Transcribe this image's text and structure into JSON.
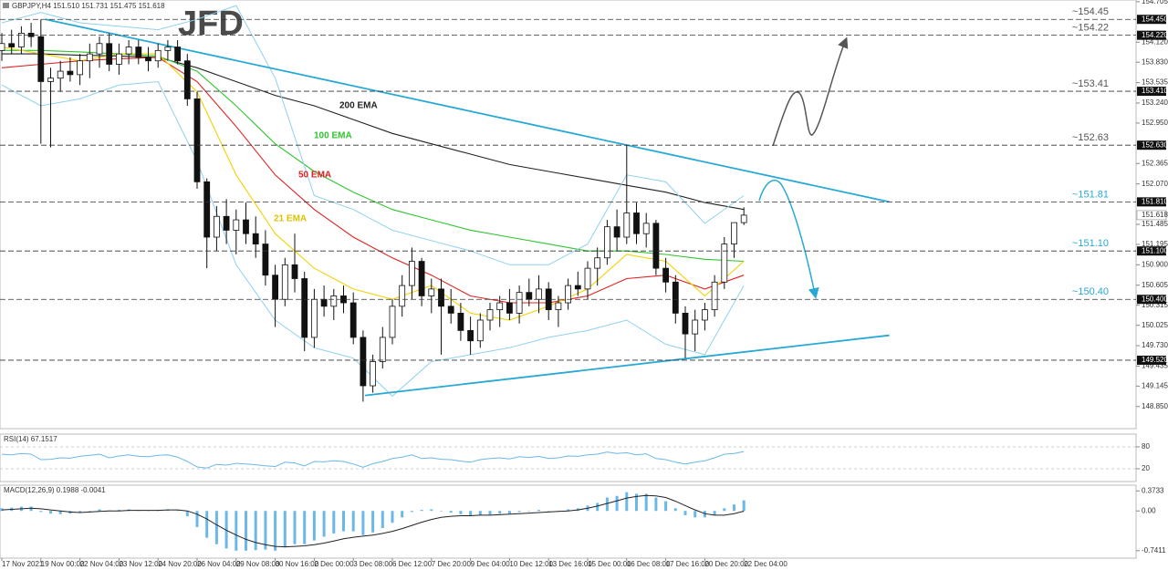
{
  "chart_data": [
    {
      "type": "candlestick",
      "header": "GBPJPY,H4  151.510 151.731 151.475 151.618",
      "logo": "JFD",
      "categories": [
        "17 Nov 2021",
        null,
        null,
        null,
        "19 Nov 00:00",
        null,
        null,
        null,
        "22 Nov 04:00",
        null,
        null,
        null,
        "23 Nov 12:00",
        null,
        null,
        null,
        "24 Nov 20:00",
        null,
        null,
        null,
        "26 Nov 04:00",
        null,
        null,
        null,
        "29 Nov 08:00",
        null,
        null,
        null,
        "30 Nov 16:00",
        null,
        null,
        null,
        "2 Dec 00:00",
        null,
        null,
        null,
        "3 Dec 08:00",
        null,
        null,
        null,
        "6 Dec 12:00",
        null,
        null,
        null,
        "7 Dec 20:00",
        null,
        null,
        null,
        "9 Dec 04:00",
        null,
        null,
        null,
        "10 Dec 12:00",
        null,
        null,
        null,
        "13 Dec 16:00",
        null,
        null,
        null,
        "15 Dec 00:00",
        null,
        null,
        null,
        "16 Dec 08:00",
        null,
        null,
        null,
        "17 Dec 16:00",
        null,
        null,
        null,
        "20 Dec 20:00",
        null,
        null,
        null,
        "22 Dec 04:00"
      ],
      "open": [
        154.0,
        154.1,
        154.05,
        154.25,
        154.2,
        153.55,
        153.6,
        153.7,
        153.65,
        153.85,
        153.95,
        154.1,
        153.8,
        153.95,
        154.05,
        153.9,
        153.85,
        154.0,
        154.05,
        153.85,
        153.3,
        152.1,
        151.3,
        151.6,
        151.4,
        151.55,
        151.35,
        151.2,
        150.75,
        150.4,
        150.9,
        150.7,
        149.85,
        150.4,
        150.3,
        150.45,
        150.35,
        149.85,
        149.15,
        149.5,
        149.85,
        150.3,
        150.6,
        150.95,
        150.45,
        150.55,
        150.3,
        150.2,
        149.95,
        149.8,
        150.1,
        150.25,
        150.35,
        150.2,
        150.5,
        150.4,
        150.55,
        150.25,
        150.35,
        150.6,
        150.55,
        150.85,
        151.0,
        151.45,
        151.3,
        151.65,
        151.35,
        151.5,
        150.85,
        150.65,
        150.2,
        149.9,
        150.1,
        150.25,
        150.65,
        151.2,
        151.51
      ],
      "high": [
        154.25,
        154.3,
        154.35,
        154.4,
        154.45,
        153.75,
        153.85,
        153.9,
        153.95,
        154.1,
        154.2,
        154.25,
        154.1,
        154.15,
        154.15,
        154.05,
        154.1,
        154.15,
        154.15,
        153.95,
        153.4,
        152.15,
        151.75,
        151.85,
        151.7,
        151.8,
        151.6,
        151.4,
        150.9,
        151.0,
        151.35,
        150.8,
        150.55,
        150.6,
        150.55,
        150.6,
        150.5,
        149.95,
        149.6,
        150.0,
        150.4,
        150.75,
        151.15,
        151.0,
        150.7,
        150.7,
        150.55,
        150.35,
        150.15,
        150.2,
        150.35,
        150.45,
        150.55,
        150.6,
        150.7,
        150.75,
        150.65,
        150.45,
        150.7,
        150.8,
        150.95,
        151.15,
        151.55,
        151.7,
        152.63,
        151.8,
        151.65,
        151.55,
        151.0,
        150.75,
        150.3,
        150.25,
        150.35,
        150.75,
        151.3,
        151.45,
        151.731
      ],
      "low": [
        153.85,
        153.95,
        153.95,
        154.05,
        152.65,
        152.6,
        153.4,
        153.55,
        153.5,
        153.6,
        153.75,
        153.7,
        153.65,
        153.8,
        153.8,
        153.7,
        153.75,
        153.85,
        153.8,
        153.2,
        152.0,
        150.85,
        151.1,
        151.2,
        151.05,
        151.2,
        151.0,
        150.6,
        150.0,
        150.3,
        150.5,
        149.65,
        149.7,
        150.15,
        150.1,
        150.2,
        149.75,
        148.92,
        149.05,
        149.4,
        149.75,
        150.15,
        150.4,
        150.3,
        150.2,
        149.6,
        150.05,
        149.8,
        149.6,
        149.7,
        149.95,
        150.0,
        150.1,
        150.05,
        150.3,
        150.2,
        150.1,
        150.0,
        150.25,
        150.45,
        150.4,
        150.6,
        150.9,
        151.1,
        151.2,
        151.2,
        151.15,
        150.75,
        150.5,
        150.05,
        149.55,
        149.65,
        149.95,
        150.15,
        150.55,
        151.0,
        151.475
      ],
      "close": [
        154.1,
        154.05,
        154.25,
        154.2,
        153.55,
        153.6,
        153.7,
        153.65,
        153.85,
        153.95,
        154.1,
        153.8,
        153.95,
        154.05,
        153.9,
        153.85,
        154.0,
        154.05,
        153.85,
        153.3,
        152.1,
        151.3,
        151.6,
        151.4,
        151.55,
        151.35,
        151.2,
        150.75,
        150.4,
        150.9,
        150.7,
        149.85,
        150.4,
        150.3,
        150.45,
        150.35,
        149.85,
        149.15,
        149.5,
        149.85,
        150.3,
        150.6,
        150.95,
        150.45,
        150.55,
        150.3,
        150.2,
        149.95,
        149.8,
        150.1,
        150.25,
        150.35,
        150.2,
        150.5,
        150.4,
        150.55,
        150.25,
        150.35,
        150.6,
        150.55,
        150.85,
        151.0,
        151.45,
        151.3,
        151.65,
        151.35,
        151.5,
        150.85,
        150.65,
        150.2,
        149.9,
        150.1,
        150.25,
        150.65,
        151.2,
        151.51,
        151.618
      ],
      "ylim": [
        148.53,
        154.73
      ],
      "yticks": [
        {
          "value": 154.705,
          "label": "154.705"
        },
        {
          "value": 154.12,
          "label": "154.120"
        },
        {
          "value": 153.83,
          "label": "153.830"
        },
        {
          "value": 153.535,
          "label": "153.535"
        },
        {
          "value": 153.24,
          "label": "153.240"
        },
        {
          "value": 152.95,
          "label": "152.950"
        },
        {
          "value": 152.365,
          "label": "152.365"
        },
        {
          "value": 152.07,
          "label": "152.070"
        },
        {
          "value": 151.485,
          "label": "151.485"
        },
        {
          "value": 151.195,
          "label": "151.195"
        },
        {
          "value": 150.9,
          "label": "150.900"
        },
        {
          "value": 150.605,
          "label": "150.605"
        },
        {
          "value": 150.315,
          "label": "150.315"
        },
        {
          "value": 150.025,
          "label": "150.025"
        },
        {
          "value": 149.73,
          "label": "149.730"
        },
        {
          "value": 149.435,
          "label": "149.435"
        },
        {
          "value": 149.145,
          "label": "149.145"
        },
        {
          "value": 148.85,
          "label": "148.850"
        }
      ],
      "current_price": {
        "value": 151.618,
        "label": "151.618"
      },
      "series": [
        {
          "name": "200 EMA",
          "color": "#222222",
          "x": [
            0,
            4,
            8,
            12,
            16,
            20,
            24,
            28,
            32,
            36,
            40,
            44,
            48,
            52,
            56,
            60,
            64,
            68,
            72,
            76
          ],
          "values": [
            153.95,
            153.95,
            153.93,
            153.92,
            153.9,
            153.75,
            153.55,
            153.35,
            153.2,
            153.0,
            152.8,
            152.65,
            152.5,
            152.35,
            152.25,
            152.15,
            152.05,
            151.95,
            151.8,
            151.7
          ]
        },
        {
          "name": "100 EMA",
          "color": "#2fc52f",
          "x": [
            0,
            4,
            8,
            12,
            16,
            20,
            24,
            28,
            32,
            36,
            40,
            44,
            48,
            52,
            56,
            60,
            64,
            68,
            72,
            76
          ],
          "values": [
            154.0,
            154.0,
            153.98,
            153.95,
            153.92,
            153.7,
            153.2,
            152.65,
            152.25,
            151.95,
            151.7,
            151.55,
            151.4,
            151.3,
            151.2,
            151.1,
            151.1,
            151.05,
            150.98,
            150.95
          ]
        },
        {
          "name": "50 EMA",
          "color": "#e02020",
          "x": [
            0,
            4,
            8,
            12,
            16,
            20,
            24,
            28,
            32,
            36,
            40,
            44,
            48,
            52,
            56,
            60,
            64,
            68,
            72,
            76
          ],
          "values": [
            153.75,
            153.8,
            153.85,
            153.88,
            153.9,
            153.55,
            152.9,
            152.2,
            151.7,
            151.3,
            151.0,
            150.75,
            150.45,
            150.35,
            150.35,
            150.45,
            150.7,
            150.75,
            150.55,
            150.75
          ]
        },
        {
          "name": "21 EMA",
          "color": "#f2d200",
          "x": [
            0,
            4,
            8,
            12,
            16,
            20,
            24,
            28,
            32,
            36,
            40,
            44,
            48,
            52,
            56,
            60,
            64,
            68,
            72,
            76
          ],
          "values": [
            154.05,
            153.95,
            153.85,
            153.95,
            153.95,
            153.4,
            152.2,
            151.35,
            150.85,
            150.55,
            150.4,
            150.6,
            150.2,
            150.1,
            150.3,
            150.55,
            151.05,
            150.95,
            150.45,
            150.95
          ]
        },
        {
          "color": "#8fd0f0",
          "x": [
            0,
            4,
            8,
            12,
            16,
            20,
            24,
            28,
            32,
            36,
            40,
            44,
            48,
            52,
            56,
            60,
            64,
            68,
            72,
            76
          ],
          "values": [
            154.4,
            154.55,
            154.4,
            154.35,
            154.3,
            154.45,
            154.65,
            153.6,
            151.9,
            151.7,
            151.4,
            151.25,
            151.1,
            150.9,
            150.9,
            151.2,
            152.2,
            152.1,
            151.5,
            151.9
          ]
        },
        {
          "color": "#8fd0f0",
          "x": [
            0,
            4,
            8,
            12,
            16,
            20,
            24,
            28,
            32,
            36,
            40,
            44,
            48,
            52,
            56,
            60,
            64,
            68,
            72,
            76
          ],
          "values": [
            153.5,
            153.2,
            153.3,
            153.5,
            153.55,
            152.4,
            150.9,
            150.1,
            149.7,
            149.55,
            149.0,
            149.5,
            149.6,
            149.7,
            149.85,
            149.95,
            150.1,
            149.75,
            149.6,
            150.6
          ]
        }
      ],
      "trendlines": [
        {
          "color": "#27a9d6",
          "x": [
            4.49,
            90.9
          ],
          "values": [
            154.45,
            151.81
          ]
        },
        {
          "color": "#27a9d6",
          "x": [
            37.2,
            90.9
          ],
          "values": [
            149.01,
            149.88
          ]
        }
      ],
      "levels": [
        {
          "value": 154.45,
          "label": "~154.45",
          "axis_label": "154.450",
          "color": "#555555"
        },
        {
          "value": 154.22,
          "label": "~154.22",
          "axis_label": "154.220",
          "color": "#555555"
        },
        {
          "value": 153.41,
          "label": "~153.41",
          "axis_label": "153.410",
          "color": "#555555"
        },
        {
          "value": 152.63,
          "label": "~152.63",
          "axis_label": "152.630",
          "color": "#555555"
        },
        {
          "value": 151.81,
          "label": "~151.81",
          "axis_label": "151.810",
          "color": "#27a9d6"
        },
        {
          "value": 151.1,
          "label": "~151.10",
          "axis_label": "151.100",
          "color": "#27a9d6"
        },
        {
          "value": 150.4,
          "label": "~150.40",
          "axis_label": "150.400",
          "color": "#27a9d6"
        },
        {
          "value": 149.52,
          "axis_label": "149.520",
          "color": "#555555"
        }
      ]
    },
    {
      "type": "line",
      "header": "RSI(14) 67.1517",
      "color": "#6ab8e8",
      "values": [
        60,
        58,
        62,
        60,
        45,
        46,
        50,
        49,
        54,
        57,
        60,
        50,
        55,
        58,
        54,
        53,
        57,
        58,
        52,
        40,
        25,
        22,
        32,
        30,
        35,
        33,
        31,
        28,
        26,
        38,
        36,
        28,
        40,
        39,
        42,
        40,
        33,
        24,
        34,
        40,
        48,
        52,
        58,
        48,
        50,
        46,
        45,
        41,
        38,
        45,
        48,
        50,
        47,
        53,
        51,
        54,
        48,
        50,
        55,
        54,
        58,
        60,
        66,
        62,
        64,
        58,
        61,
        48,
        45,
        38,
        33,
        38,
        42,
        50,
        60,
        62,
        67.1517
      ],
      "ylim": [
        -15,
        115
      ],
      "yticks": [
        80,
        20
      ]
    },
    {
      "type": "macd",
      "header": "MACD(12,26,9) 0.1988 -0.0041",
      "histogram_color": "#6ab8e8",
      "signal_color": "#222222",
      "histogram": [
        0.05,
        0.06,
        0.08,
        0.08,
        -0.02,
        -0.05,
        -0.06,
        -0.05,
        -0.02,
        0,
        0.03,
        0.01,
        0.02,
        0.03,
        0.02,
        0.01,
        0.02,
        0.03,
        0.01,
        -0.1,
        -0.3,
        -0.5,
        -0.62,
        -0.7,
        -0.74,
        -0.74,
        -0.73,
        -0.72,
        -0.74,
        -0.68,
        -0.62,
        -0.62,
        -0.55,
        -0.48,
        -0.42,
        -0.38,
        -0.38,
        -0.45,
        -0.4,
        -0.32,
        -0.22,
        -0.12,
        -0.02,
        0.02,
        0.03,
        0,
        -0.03,
        -0.06,
        -0.09,
        -0.08,
        -0.07,
        -0.05,
        -0.05,
        -0.02,
        0,
        0.02,
        0,
        0,
        0.03,
        0.05,
        0.1,
        0.15,
        0.25,
        0.28,
        0.35,
        0.32,
        0.32,
        0.25,
        0.18,
        0.05,
        -0.08,
        -0.12,
        -0.12,
        -0.08,
        0.05,
        0.12,
        0.1988
      ],
      "signal": [
        0.02,
        0.03,
        0.04,
        0.05,
        0.04,
        0.02,
        0,
        -0.02,
        -0.03,
        -0.02,
        -0.01,
        0,
        0,
        0.01,
        0.01,
        0.01,
        0.01,
        0.02,
        0.02,
        0,
        -0.06,
        -0.15,
        -0.26,
        -0.36,
        -0.45,
        -0.53,
        -0.59,
        -0.63,
        -0.66,
        -0.67,
        -0.66,
        -0.65,
        -0.63,
        -0.6,
        -0.56,
        -0.52,
        -0.49,
        -0.47,
        -0.45,
        -0.42,
        -0.38,
        -0.33,
        -0.27,
        -0.21,
        -0.16,
        -0.12,
        -0.1,
        -0.09,
        -0.09,
        -0.08,
        -0.08,
        -0.07,
        -0.06,
        -0.05,
        -0.04,
        -0.03,
        -0.02,
        -0.01,
        0,
        0.02,
        0.05,
        0.09,
        0.14,
        0.19,
        0.24,
        0.27,
        0.29,
        0.28,
        0.25,
        0.18,
        0.1,
        0.02,
        -0.05,
        -0.08,
        -0.08,
        -0.05,
        -0.0041
      ],
      "ylim": [
        -0.88,
        0.48
      ],
      "yticks": [
        0.3733,
        {
          "value": 0,
          "label": "0.00"
        },
        -0.7411
      ]
    }
  ]
}
